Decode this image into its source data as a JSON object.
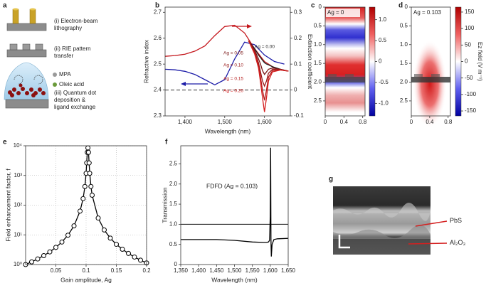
{
  "panel_labels": [
    "a",
    "b",
    "c",
    "d",
    "e",
    "f",
    "g"
  ],
  "schematic": {
    "steps": [
      "(i) Electron-beam lithography",
      "(ii) RIE pattern transfer",
      "(iii) Quantum dot deposition & ligand exchange"
    ],
    "legend": [
      "MPA",
      "Oleic acid"
    ]
  },
  "chart_data": [
    {
      "type": "line",
      "xlabel": "Wavelength (nm)",
      "ylabel": "Refractive index",
      "y2label": "Extinction coefficient",
      "x": [
        1350,
        1375,
        1400,
        1425,
        1450,
        1475,
        1500,
        1525,
        1550,
        1575,
        1600,
        1625,
        1650
      ],
      "xlim": [
        1350,
        1665
      ],
      "xticks": [
        {
          "value": 1400,
          "label": "1,400"
        },
        {
          "value": 1500,
          "label": "1,500"
        },
        {
          "value": 1600,
          "label": "1,600"
        }
      ],
      "ylim": [
        2.3,
        2.72
      ],
      "yticks": [
        2.3,
        2.4,
        2.5,
        2.6,
        2.7
      ],
      "y2lim": [
        -0.1,
        0.32
      ],
      "y2ticks": [
        -0.1,
        0,
        0.1,
        0.2,
        0.3
      ],
      "baseline": 0,
      "series": [
        {
          "color": "#1c1ca8",
          "values": [
            2.48,
            2.478,
            2.472,
            2.46,
            2.44,
            2.42,
            2.44,
            2.52,
            2.585,
            2.575,
            2.535,
            2.51,
            2.5
          ]
        },
        {
          "color": "#c4161c",
          "axis": "y2",
          "values": [
            0.13,
            0.133,
            0.138,
            0.15,
            0.17,
            0.21,
            0.245,
            0.25,
            0.22,
            0.16,
            0.11,
            0.085,
            0.075
          ]
        },
        {
          "name": "Ag = 0.00",
          "color": "#222222",
          "axis": "y2",
          "x": [
            1560,
            1575,
            1585,
            1590,
            1595,
            1600,
            1605,
            1610,
            1620,
            1640,
            1660
          ],
          "values": [
            0.19,
            0.16,
            0.135,
            0.125,
            0.115,
            0.105,
            0.1,
            0.097,
            0.09,
            0.08,
            0.073
          ]
        },
        {
          "name": "Ag = 0.05",
          "color": "#7a1616",
          "axis": "y2",
          "x": [
            1560,
            1575,
            1585,
            1590,
            1595,
            1600,
            1605,
            1610,
            1620,
            1640,
            1660
          ],
          "values": [
            0.19,
            0.155,
            0.12,
            0.1,
            0.075,
            0.06,
            0.07,
            0.08,
            0.085,
            0.08,
            0.073
          ]
        },
        {
          "name": "Ag = 0.10",
          "color": "#981818",
          "axis": "y2",
          "x": [
            1560,
            1575,
            1585,
            1590,
            1595,
            1600,
            1605,
            1610,
            1620,
            1640,
            1660
          ],
          "values": [
            0.19,
            0.15,
            0.105,
            0.07,
            0.035,
            0.015,
            0.035,
            0.065,
            0.08,
            0.078,
            0.073
          ]
        },
        {
          "name": "Ag = 0.15",
          "color": "#b41a1a",
          "axis": "y2",
          "x": [
            1560,
            1575,
            1585,
            1590,
            1595,
            1600,
            1605,
            1610,
            1620,
            1640,
            1660
          ],
          "values": [
            0.19,
            0.145,
            0.095,
            0.05,
            0.0,
            -0.04,
            0.0,
            0.05,
            0.075,
            0.078,
            0.073
          ]
        },
        {
          "name": "Ag = 0.20",
          "color": "#d42020",
          "axis": "y2",
          "x": [
            1560,
            1575,
            1585,
            1590,
            1595,
            1600,
            1605,
            1610,
            1620,
            1640,
            1660
          ],
          "values": [
            0.19,
            0.14,
            0.085,
            0.03,
            -0.03,
            -0.085,
            -0.03,
            0.035,
            0.07,
            0.077,
            0.073
          ]
        }
      ]
    },
    {
      "type": "heatmap",
      "annotation": "Ag = 0",
      "xlim": [
        0,
        0.85
      ],
      "xticks": [
        0,
        0.4,
        0.8
      ],
      "ylim": [
        0,
        2.9
      ],
      "yticks": [
        0,
        0.5,
        {
          "value": 1,
          "label": "1.0"
        },
        1.5,
        {
          "value": 2,
          "label": "2.0"
        },
        2.5
      ],
      "zlim": [
        -1.3,
        1.3
      ],
      "zticks": [
        {
          "value": 1,
          "label": "1.0"
        },
        0.5,
        0,
        -0.5,
        {
          "value": -1,
          "label": "-1.0"
        }
      ]
    },
    {
      "type": "heatmap",
      "annotation": "Ag = 0.103",
      "zlabel": "Ez field (V m⁻¹)",
      "xlim": [
        0,
        0.85
      ],
      "xticks": [
        0,
        0.4,
        0.8
      ],
      "ylim": [
        0,
        2.9
      ],
      "yticks": [
        0,
        0.5,
        {
          "value": 1,
          "label": "1.0"
        },
        1.5,
        {
          "value": 2,
          "label": "2.0"
        },
        2.5
      ],
      "zlim": [
        -165,
        165
      ],
      "zticks": [
        150,
        100,
        50,
        0,
        -50,
        -100,
        -150
      ]
    },
    {
      "type": "line",
      "xlabel": "Gain amplitude, Ag",
      "ylabel": "Field enhancement factor, f",
      "log_y": true,
      "grid": true,
      "markers": true,
      "x": [
        0,
        0.01,
        0.02,
        0.03,
        0.04,
        0.05,
        0.06,
        0.07,
        0.08,
        0.09,
        0.095,
        0.098,
        0.1,
        0.101,
        0.102,
        0.103,
        0.104,
        0.105,
        0.106,
        0.108,
        0.11,
        0.12,
        0.13,
        0.14,
        0.15,
        0.16,
        0.17,
        0.18,
        0.19,
        0.2
      ],
      "xlim": [
        0,
        0.2
      ],
      "xticks": [
        0.05,
        0.1,
        0.15,
        0.2
      ],
      "ylim": [
        1,
        10000
      ],
      "yticks": [
        {
          "value": 1,
          "label": "10⁰"
        },
        {
          "value": 10,
          "label": "10¹"
        },
        {
          "value": 100,
          "label": "10²"
        },
        {
          "value": 1000,
          "label": "10³"
        },
        {
          "value": 10000,
          "label": "10⁴"
        }
      ],
      "series": [
        {
          "color": "#000000",
          "values": [
            1,
            1.23,
            1.54,
            1.99,
            2.67,
            3.78,
            5.74,
            9.74,
            20.1,
            62.8,
            166,
            425,
            1180,
            2650,
            6000,
            8500,
            6000,
            2650,
            1180,
            425,
            216,
            36.7,
            14.6,
            7.75,
            4.8,
            3.27,
            2.37,
            1.79,
            1.4,
            1.13
          ]
        }
      ]
    },
    {
      "type": "line",
      "xlabel": "Wavelength (nm)",
      "ylabel": "Transmission",
      "annotation": "FDFD (Ag = 0.103)",
      "reference_line": 1,
      "x": [
        1350,
        1400,
        1450,
        1500,
        1550,
        1580,
        1590,
        1595,
        1598,
        1600,
        1601,
        1602,
        1603,
        1605,
        1610,
        1620,
        1650
      ],
      "xlim": [
        1350,
        1650
      ],
      "xticks": [
        {
          "value": 1350,
          "label": "1,350"
        },
        {
          "value": 1400,
          "label": "1,400"
        },
        {
          "value": 1450,
          "label": "1,450"
        },
        {
          "value": 1500,
          "label": "1,500"
        },
        {
          "value": 1550,
          "label": "1,550"
        },
        {
          "value": 1600,
          "label": "1,600"
        },
        {
          "value": 1650,
          "label": "1,650"
        }
      ],
      "ylim": [
        0,
        2.95
      ],
      "yticks": [
        0,
        0.5,
        {
          "value": 1,
          "label": "1.0"
        },
        1.5,
        {
          "value": 2,
          "label": "2.0"
        },
        2.5
      ],
      "series": [
        {
          "color": "#000000",
          "values": [
            0.62,
            0.62,
            0.62,
            0.6,
            0.56,
            0.55,
            0.55,
            0.56,
            0.6,
            1.2,
            2.9,
            0.6,
            0.2,
            0.5,
            0.62,
            0.64,
            0.65
          ]
        }
      ]
    }
  ],
  "micrograph": {
    "labels": [
      "PbS",
      "Al₂O₃"
    ]
  }
}
